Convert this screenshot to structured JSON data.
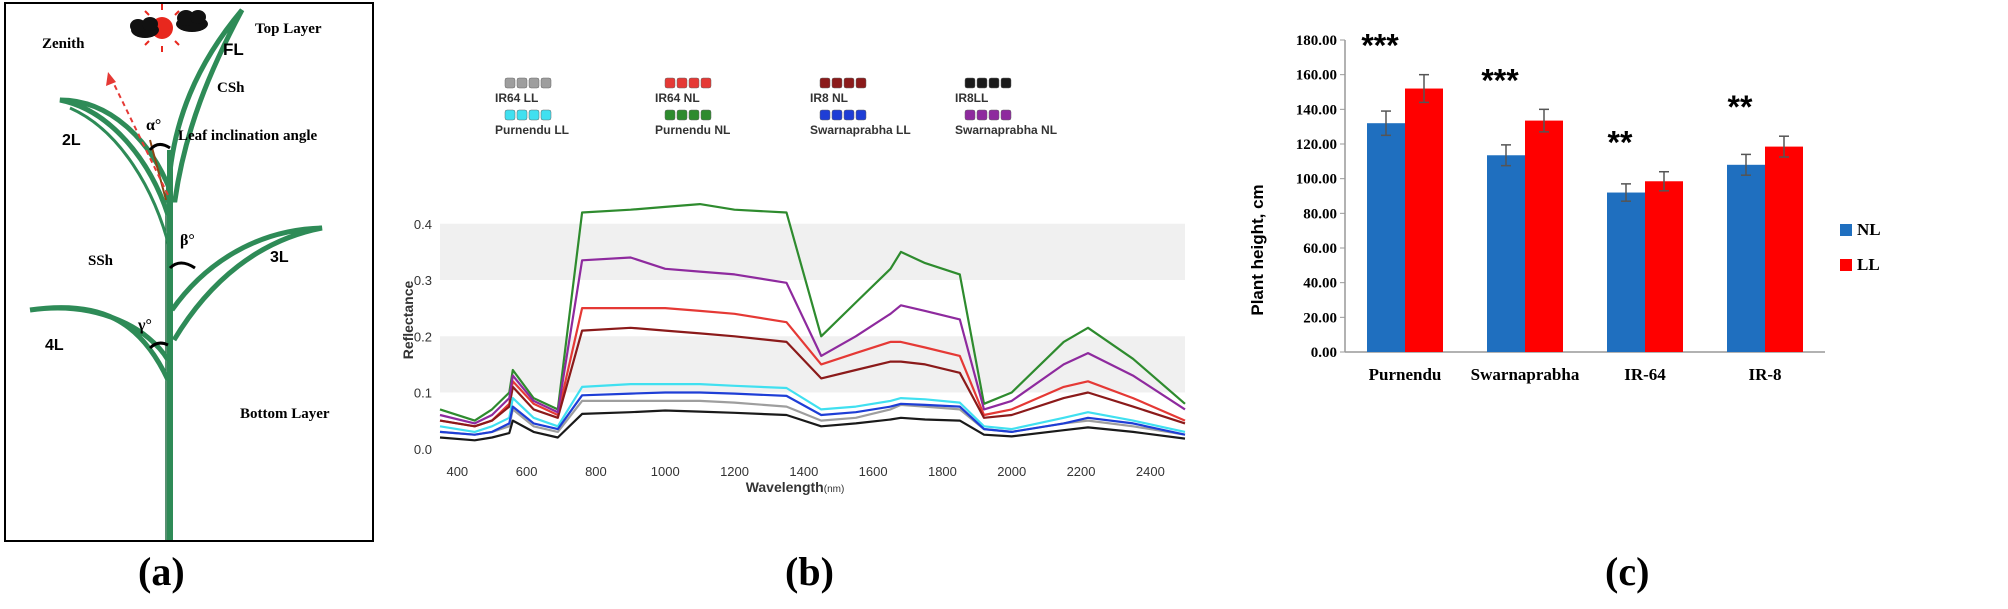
{
  "captions": {
    "a": "(a)",
    "b": "(b)",
    "c": "(c)"
  },
  "panel_a": {
    "labels": {
      "zenith": "Zenith",
      "top_layer": "Top Layer",
      "fl": "FL",
      "csh": "CSh",
      "l2": "2L",
      "alpha": "α°",
      "leaf_inclination": "Leaf inclination angle",
      "ssh": "SSh",
      "beta": "β°",
      "l3": "3L",
      "l4": "4L",
      "gamma": "γ°",
      "bottom_layer": "Bottom Layer"
    },
    "colors": {
      "leaf": "#2e8b57",
      "arrow": "#e53935",
      "sun": "#e8281e"
    }
  },
  "chart_data": [
    {
      "type": "line",
      "panel": "b",
      "xlabel": "Wavelength",
      "xlabel_unit": "(nm)",
      "ylabel": "Reflectance",
      "xlim": [
        350,
        2500
      ],
      "ylim": [
        -0.02,
        0.46
      ],
      "xticks": [
        "400",
        "600",
        "800",
        "1000",
        "1200",
        "1400",
        "1600",
        "1800",
        "2000",
        "2200",
        "2400"
      ],
      "yticks": [
        "0.0",
        "0.1",
        "0.2",
        "0.3",
        "0.4"
      ],
      "grid": "horizontal bands",
      "legend_position": "top",
      "series": [
        {
          "name": "IR64 LL",
          "color": "#9e9e9e",
          "values": [
            0.03,
            0.025,
            0.03,
            0.04,
            0.07,
            0.04,
            0.03,
            0.085,
            0.085,
            0.085,
            0.085,
            0.082,
            0.075,
            0.05,
            0.055,
            0.07,
            0.078,
            0.075,
            0.07,
            0.035,
            0.03,
            0.045,
            0.05,
            0.04,
            0.025
          ]
        },
        {
          "name": "IR64 NL",
          "color": "#e53935",
          "values": [
            0.05,
            0.04,
            0.05,
            0.08,
            0.12,
            0.08,
            0.06,
            0.25,
            0.25,
            0.25,
            0.245,
            0.24,
            0.225,
            0.15,
            0.17,
            0.19,
            0.19,
            0.18,
            0.165,
            0.06,
            0.07,
            0.11,
            0.12,
            0.09,
            0.05
          ]
        },
        {
          "name": "IR8 NL",
          "color": "#8b1a1a",
          "values": [
            0.05,
            0.04,
            0.05,
            0.075,
            0.11,
            0.07,
            0.055,
            0.21,
            0.215,
            0.21,
            0.205,
            0.2,
            0.19,
            0.125,
            0.14,
            0.155,
            0.155,
            0.15,
            0.135,
            0.055,
            0.06,
            0.09,
            0.1,
            0.075,
            0.045
          ]
        },
        {
          "name": "IR8LL",
          "color": "#1a1a1a",
          "values": [
            0.02,
            0.015,
            0.02,
            0.028,
            0.05,
            0.03,
            0.02,
            0.062,
            0.065,
            0.068,
            0.066,
            0.064,
            0.06,
            0.04,
            0.045,
            0.052,
            0.055,
            0.052,
            0.05,
            0.025,
            0.022,
            0.033,
            0.038,
            0.03,
            0.018
          ]
        },
        {
          "name": "Purnendu LL",
          "color": "#40e0f0",
          "values": [
            0.04,
            0.03,
            0.04,
            0.055,
            0.09,
            0.055,
            0.04,
            0.11,
            0.115,
            0.115,
            0.115,
            0.112,
            0.108,
            0.07,
            0.075,
            0.085,
            0.09,
            0.088,
            0.082,
            0.04,
            0.035,
            0.055,
            0.065,
            0.05,
            0.03
          ]
        },
        {
          "name": "Purnendu NL",
          "color": "#2e8b2e",
          "values": [
            0.07,
            0.05,
            0.07,
            0.1,
            0.14,
            0.09,
            0.07,
            0.42,
            0.425,
            0.43,
            0.435,
            0.425,
            0.42,
            0.2,
            0.26,
            0.32,
            0.35,
            0.33,
            0.31,
            0.08,
            0.1,
            0.19,
            0.215,
            0.16,
            0.08
          ]
        },
        {
          "name": "Swarnaprabha LL",
          "color": "#1e3ed6",
          "values": [
            0.03,
            0.025,
            0.03,
            0.045,
            0.075,
            0.045,
            0.035,
            0.095,
            0.098,
            0.1,
            0.1,
            0.098,
            0.094,
            0.06,
            0.065,
            0.075,
            0.08,
            0.078,
            0.075,
            0.035,
            0.03,
            0.045,
            0.055,
            0.045,
            0.025
          ]
        },
        {
          "name": "Swarnaprabha NL",
          "color": "#8e2a9e",
          "values": [
            0.06,
            0.045,
            0.06,
            0.09,
            0.13,
            0.085,
            0.065,
            0.335,
            0.34,
            0.32,
            0.315,
            0.31,
            0.295,
            0.165,
            0.2,
            0.24,
            0.255,
            0.245,
            0.23,
            0.07,
            0.085,
            0.15,
            0.17,
            0.13,
            0.07
          ]
        }
      ],
      "x": [
        350,
        450,
        500,
        550,
        560,
        620,
        690,
        760,
        900,
        1000,
        1100,
        1200,
        1350,
        1450,
        1550,
        1650,
        1680,
        1750,
        1850,
        1920,
        2000,
        2150,
        2220,
        2350,
        2500
      ]
    },
    {
      "type": "bar",
      "panel": "c",
      "ylabel": "Plant height, cm",
      "ylim": [
        0,
        180
      ],
      "yticks": [
        "0.00",
        "20.00",
        "40.00",
        "60.00",
        "80.00",
        "100.00",
        "120.00",
        "140.00",
        "160.00",
        "180.00"
      ],
      "categories": [
        "Purnendu",
        "Swarnaprabha",
        "IR-64",
        "IR-8"
      ],
      "significance": [
        "***",
        "***",
        "**",
        "**"
      ],
      "legend_position": "right",
      "series": [
        {
          "name": "NL",
          "color": "#1f6fbf",
          "values": [
            132,
            113.5,
            92,
            108
          ],
          "errors": [
            7,
            6,
            5,
            6
          ]
        },
        {
          "name": "LL",
          "color": "#ff0000",
          "values": [
            152,
            133.5,
            98.5,
            118.5
          ],
          "errors": [
            8,
            6.5,
            5.5,
            6
          ]
        }
      ]
    }
  ]
}
